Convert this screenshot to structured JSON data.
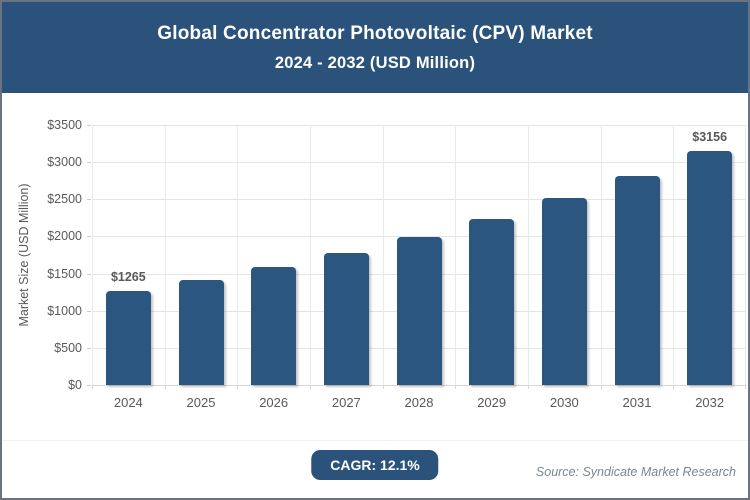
{
  "header": {
    "title_line1": "Global Concentrator Photovoltaic (CPV) Market",
    "title_line2": "2024 - 2032 (USD Million)"
  },
  "chart_data": {
    "type": "bar",
    "title": "Global Concentrator Photovoltaic (CPV) Market 2024 - 2032 (USD Million)",
    "categories": [
      "2024",
      "2025",
      "2026",
      "2027",
      "2028",
      "2029",
      "2030",
      "2031",
      "2032"
    ],
    "values": [
      1265,
      1418,
      1590,
      1782,
      1998,
      2240,
      2511,
      2815,
      3156
    ],
    "shown_value_labels": [
      "$1265",
      "",
      "",
      "",
      "",
      "",
      "",
      "",
      "$3156"
    ],
    "xlabel": "",
    "ylabel": "Market Size (USD Million)",
    "ylim": [
      0,
      3500
    ],
    "ytick_values": [
      0,
      500,
      1000,
      1500,
      2000,
      2500,
      3000,
      3500
    ],
    "ytick_labels": [
      "$0",
      "$500",
      "$1000",
      "$1500",
      "$2000",
      "$2500",
      "$3000",
      "$3500"
    ],
    "grid": true,
    "legend": "none"
  },
  "footer": {
    "cagr_label": "CAGR: 12.1%",
    "source": "Source: Syndicate Market Research"
  },
  "colors": {
    "header_bg": "#2a527b",
    "bar": "#2a567f",
    "badge_bg": "#2a527b",
    "axis_text": "#595959",
    "grid_line": "#e4e4e4",
    "source_text": "#7b8794",
    "page_border": "#6a7480"
  }
}
